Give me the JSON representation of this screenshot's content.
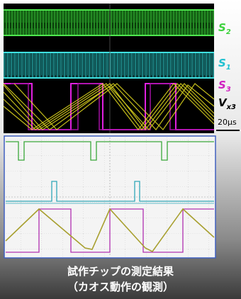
{
  "labels": [
    {
      "main": "S",
      "sub": "2"
    },
    {
      "main": "S",
      "sub": "1"
    },
    {
      "main": "S",
      "sub": "3"
    },
    {
      "main": "V",
      "sub": "x3"
    }
  ],
  "time_scale": "20µs",
  "caption": {
    "line1": "試作チップの測定結果",
    "line2": "（カオス動作の観測）"
  }
}
